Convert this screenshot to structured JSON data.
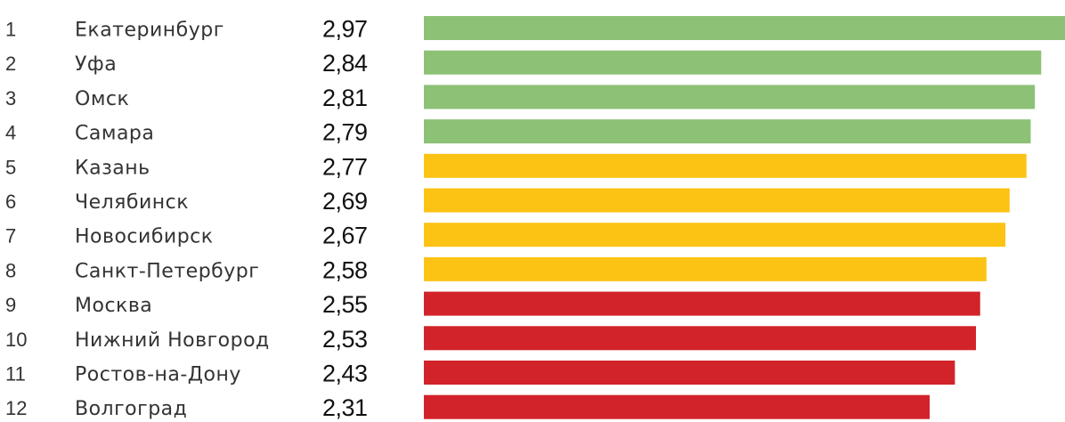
{
  "chart_data": {
    "type": "bar",
    "orientation": "horizontal",
    "categories": [
      "Екатеринбург",
      "Уфа",
      "Омск",
      "Самара",
      "Казань",
      "Челябинск",
      "Новосибирск",
      "Санкт-Петербург",
      "Москва",
      "Нижний Новгород",
      "Ростов-на-Дону",
      "Волгоград"
    ],
    "ranks": [
      "1",
      "2",
      "3",
      "4",
      "5",
      "6",
      "7",
      "8",
      "9",
      "10",
      "11",
      "12"
    ],
    "values": [
      2.97,
      2.84,
      2.81,
      2.79,
      2.77,
      2.69,
      2.67,
      2.58,
      2.55,
      2.53,
      2.43,
      2.31
    ],
    "value_labels": [
      "2,97",
      "2,84",
      "2,81",
      "2,79",
      "2,77",
      "2,69",
      "2,67",
      "2,58",
      "2,55",
      "2,53",
      "2,43",
      "2,31"
    ],
    "bar_colors": [
      "#8cc176",
      "#8cc176",
      "#8cc176",
      "#8cc176",
      "#fcc315",
      "#fcc315",
      "#fcc315",
      "#fcc315",
      "#d2232a",
      "#d2232a",
      "#d2232a",
      "#d2232a"
    ],
    "title": "",
    "xlabel": "",
    "ylabel": "",
    "legend": "none",
    "grid": false
  }
}
